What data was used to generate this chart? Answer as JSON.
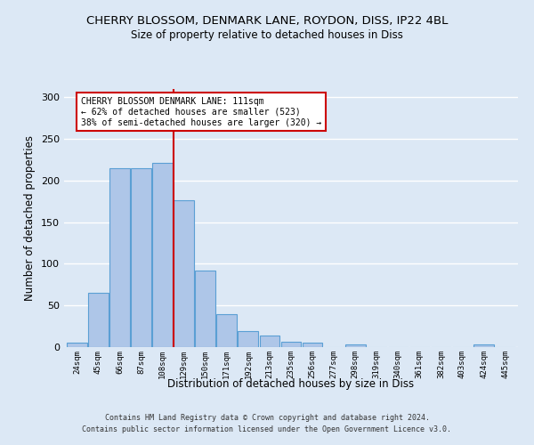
{
  "title_line1": "CHERRY BLOSSOM, DENMARK LANE, ROYDON, DISS, IP22 4BL",
  "title_line2": "Size of property relative to detached houses in Diss",
  "xlabel": "Distribution of detached houses by size in Diss",
  "ylabel": "Number of detached properties",
  "footer_line1": "Contains HM Land Registry data © Crown copyright and database right 2024.",
  "footer_line2": "Contains public sector information licensed under the Open Government Licence v3.0.",
  "bin_labels": [
    "24sqm",
    "45sqm",
    "66sqm",
    "87sqm",
    "108sqm",
    "129sqm",
    "150sqm",
    "171sqm",
    "192sqm",
    "213sqm",
    "235sqm",
    "256sqm",
    "277sqm",
    "298sqm",
    "319sqm",
    "340sqm",
    "361sqm",
    "382sqm",
    "403sqm",
    "424sqm",
    "445sqm"
  ],
  "bar_values": [
    5,
    65,
    215,
    215,
    221,
    176,
    92,
    40,
    19,
    14,
    6,
    5,
    0,
    3,
    0,
    0,
    0,
    0,
    0,
    3,
    0
  ],
  "bar_color": "#aec6e8",
  "bar_edge_color": "#5a9fd4",
  "vline_x": 4.5,
  "property_line_label": "CHERRY BLOSSOM DENMARK LANE: 111sqm",
  "annotation_line2": "← 62% of detached houses are smaller (523)",
  "annotation_line3": "38% of semi-detached houses are larger (320) →",
  "annotation_box_color": "#ffffff",
  "annotation_box_edge_color": "#cc0000",
  "vline_color": "#cc0000",
  "ylim": [
    0,
    310
  ],
  "background_color": "#dce8f5",
  "grid_color": "#ffffff"
}
